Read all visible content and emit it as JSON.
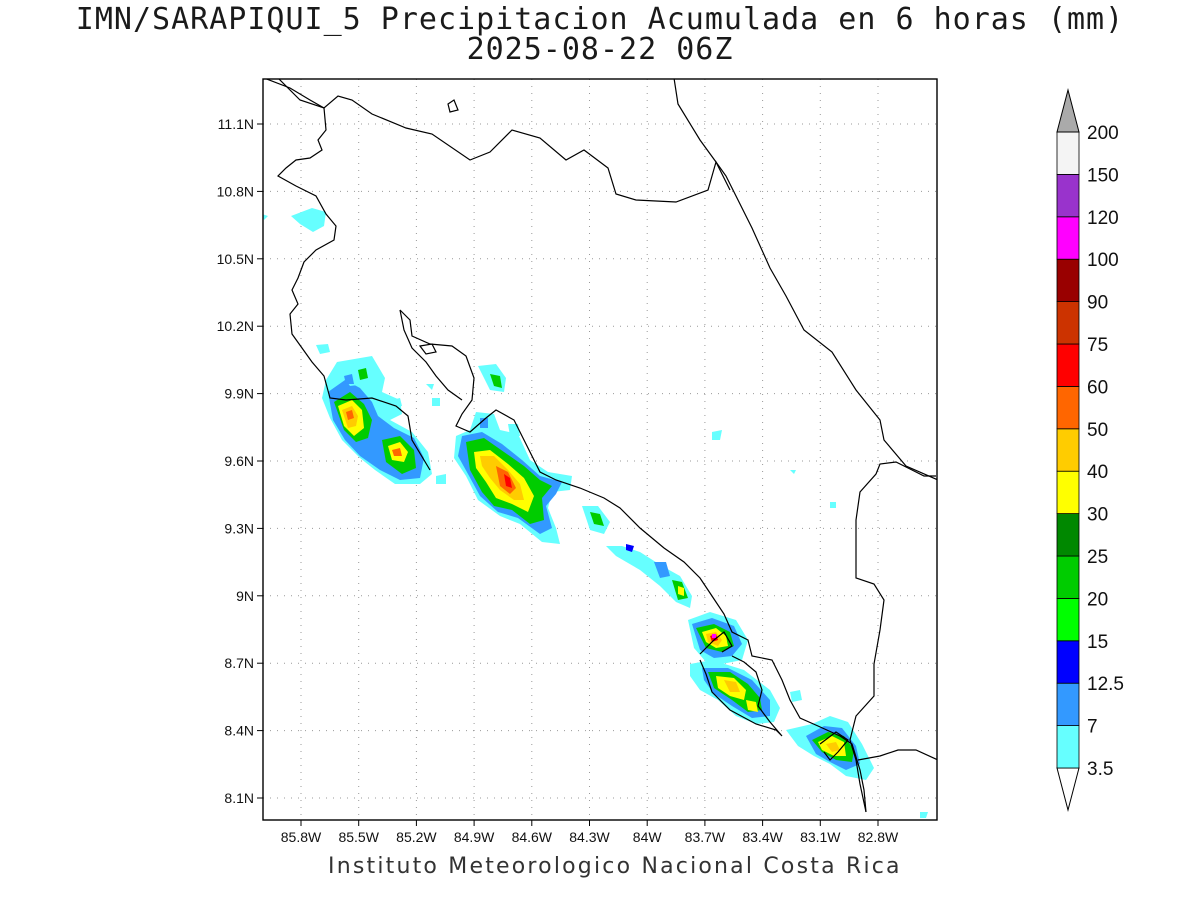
{
  "title": {
    "line1": "IMN/SARAPIQUI_5 Precipitacion Acumulada en 6 horas (mm)",
    "line2": "2025-08-22 06Z"
  },
  "footer": "Instituto Meteorologico Nacional Costa Rica",
  "map": {
    "lon_range": [
      -86.0,
      -83.0
    ],
    "lat_range": [
      8.0,
      11.3
    ],
    "lat_ticks": [
      {
        "value": 11.1,
        "label": "11.1N"
      },
      {
        "value": 10.8,
        "label": "10.8N"
      },
      {
        "value": 10.5,
        "label": "10.5N"
      },
      {
        "value": 10.2,
        "label": "10.2N"
      },
      {
        "value": 9.9,
        "label": "9.9N"
      },
      {
        "value": 9.6,
        "label": "9.6N"
      },
      {
        "value": 9.3,
        "label": "9.3N"
      },
      {
        "value": 9.0,
        "label": "9N"
      },
      {
        "value": 8.7,
        "label": "8.7N"
      },
      {
        "value": 8.4,
        "label": "8.4N"
      },
      {
        "value": 8.1,
        "label": "8.1N"
      }
    ],
    "lon_ticks": [
      {
        "value": -85.8,
        "label": "85.8W"
      },
      {
        "value": -85.5,
        "label": "85.5W"
      },
      {
        "value": -85.2,
        "label": "85.2W"
      },
      {
        "value": -84.9,
        "label": "84.9W"
      },
      {
        "value": -84.6,
        "label": "84.6W"
      },
      {
        "value": -84.3,
        "label": "84.3W"
      },
      {
        "value": -84.0,
        "label": "84W"
      },
      {
        "value": -83.7,
        "label": "83.7W"
      },
      {
        "value": -83.4,
        "label": "83.4W"
      },
      {
        "value": -83.1,
        "label": "83.1W"
      },
      {
        "value": -82.8,
        "label": "82.8W"
      }
    ],
    "grid": "dotted"
  },
  "colorbar": {
    "levels": [
      {
        "label": "3.5",
        "color": "#66ffff"
      },
      {
        "label": "7",
        "color": "#3399ff"
      },
      {
        "label": "12.5",
        "color": "#0000ff"
      },
      {
        "label": "15",
        "color": "#00ff00"
      },
      {
        "label": "20",
        "color": "#00cc00"
      },
      {
        "label": "25",
        "color": "#008800"
      },
      {
        "label": "30",
        "color": "#ffff00"
      },
      {
        "label": "40",
        "color": "#ffcc00"
      },
      {
        "label": "50",
        "color": "#ff6600"
      },
      {
        "label": "60",
        "color": "#ff0000"
      },
      {
        "label": "75",
        "color": "#cc3300"
      },
      {
        "label": "90",
        "color": "#990000"
      },
      {
        "label": "100",
        "color": "#ff00ff"
      },
      {
        "label": "120",
        "color": "#9933cc"
      },
      {
        "label": "150",
        "color": "#f4f4f4"
      },
      {
        "label": "200",
        "color": "#aaaaaa"
      }
    ],
    "top_arrow_color": "#aaaaaa",
    "bottom_arrow_color": "#ffffff"
  }
}
